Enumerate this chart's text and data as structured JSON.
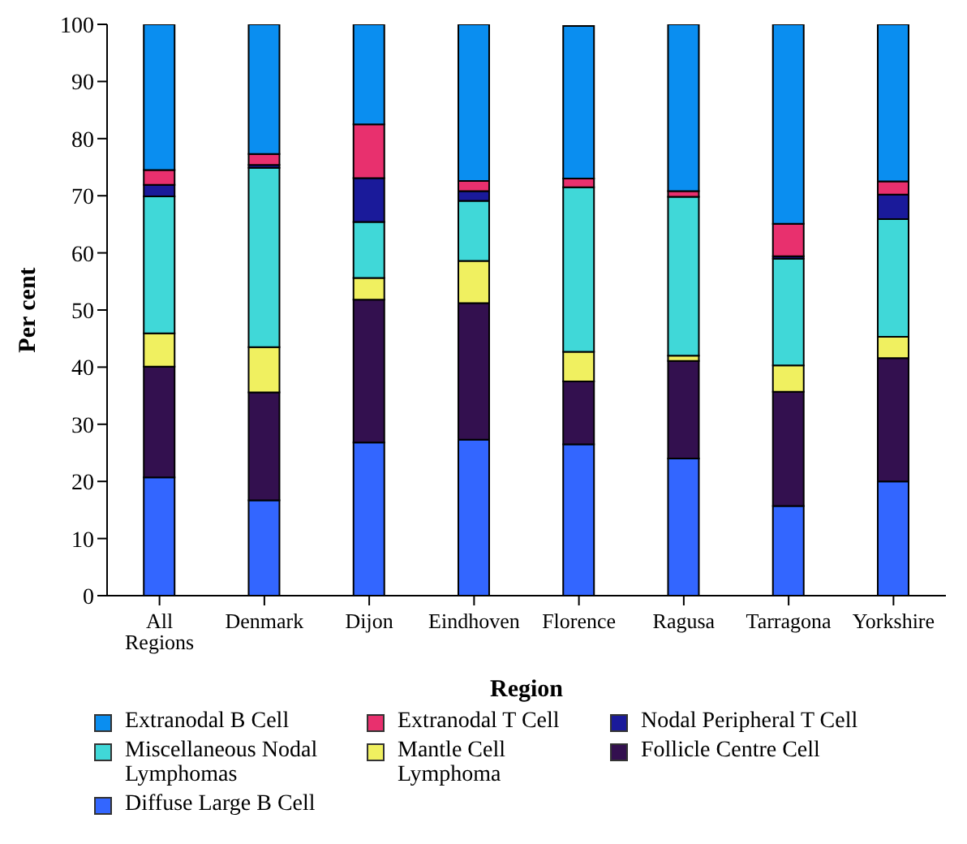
{
  "chart_data": {
    "type": "bar",
    "stacked": true,
    "xlabel": "Region",
    "ylabel": "Per cent",
    "categories": [
      "All Regions",
      "Denmark",
      "Dijon",
      "Eindhoven",
      "Florence",
      "Ragusa",
      "Tarragona",
      "Yorkshire"
    ],
    "ylim": [
      0,
      100
    ],
    "yticks": [
      0,
      10,
      20,
      30,
      40,
      50,
      60,
      70,
      80,
      90,
      100
    ],
    "grid": false,
    "legend": "bottom",
    "series": [
      {
        "name": "Diffuse Large B Cell",
        "color": "#3366ff",
        "values": [
          20.7,
          16.7,
          26.8,
          27.3,
          26.5,
          24.0,
          15.7,
          20.0
        ]
      },
      {
        "name": "Follicle Centre Cell",
        "color": "#33104f",
        "values": [
          19.4,
          18.9,
          25.0,
          23.9,
          11.0,
          17.1,
          20.0,
          21.6
        ]
      },
      {
        "name": "Mantle Cell Lymphoma",
        "color": "#f0f060",
        "values": [
          5.8,
          7.9,
          3.8,
          7.4,
          5.2,
          0.9,
          4.6,
          3.7
        ]
      },
      {
        "name": "Miscellaneous Nodal Lymphomas",
        "color": "#40d8d8",
        "values": [
          24.0,
          31.4,
          9.8,
          10.5,
          28.8,
          27.8,
          18.7,
          20.6
        ]
      },
      {
        "name": "Nodal Peripheral T Cell",
        "color": "#1a1a9a",
        "values": [
          2.0,
          0.5,
          7.7,
          1.7,
          null,
          0,
          0.4,
          4.3
        ]
      },
      {
        "name": "Extranodal T Cell",
        "color": "#e8306e",
        "values": [
          2.6,
          1.9,
          9.4,
          1.8,
          1.5,
          1.0,
          5.7,
          2.3
        ]
      },
      {
        "name": "Extranodal B Cell",
        "color": "#0a8ef0",
        "values": [
          25.5,
          22.7,
          17.5,
          27.4,
          26.7,
          29.2,
          34.9,
          27.5
        ]
      }
    ]
  }
}
